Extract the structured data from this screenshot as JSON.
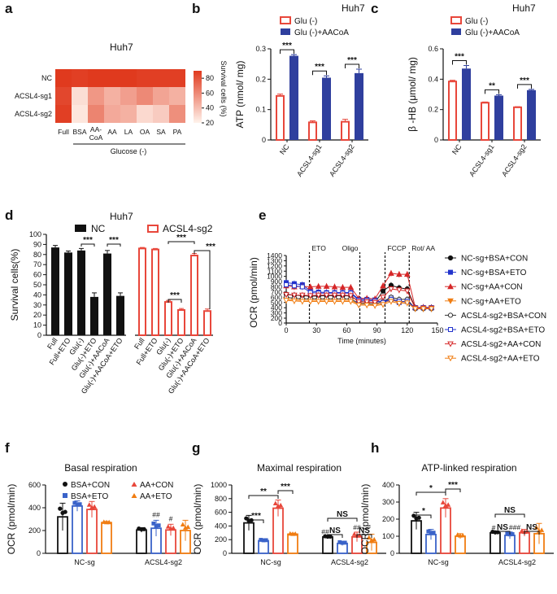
{
  "panels": {
    "a": "a",
    "b": "b",
    "c": "c",
    "d": "d",
    "e": "e",
    "f": "f",
    "g": "g",
    "h": "h"
  },
  "chart_data": [
    {
      "id": "a",
      "type": "heatmap",
      "title": "Huh7",
      "rows": [
        "NC",
        "ACSL4-sg1",
        "ACSL4-sg2"
      ],
      "columns": [
        "Full",
        "BSA",
        "AA-CoA",
        "AA",
        "LA",
        "OA",
        "SA",
        "PA"
      ],
      "column_group_label": "Glucose (-)",
      "values": [
        [
          90,
          88,
          90,
          90,
          90,
          88,
          88,
          88
        ],
        [
          85,
          28,
          55,
          45,
          52,
          60,
          50,
          45
        ],
        [
          88,
          25,
          62,
          48,
          45,
          30,
          35,
          58
        ]
      ],
      "colorbar": {
        "label": "Survival cells (%)",
        "ticks": [
          20,
          40,
          60,
          80
        ],
        "range": [
          20,
          90
        ],
        "low_color": "#fff3ec",
        "high_color": "#e03a1e"
      }
    },
    {
      "id": "b",
      "type": "bar",
      "title": "Huh7",
      "categories": [
        "NC",
        "ACSL4-sg1",
        "ACSL4-sg2"
      ],
      "series": [
        {
          "name": "Glu (-)",
          "values": [
            0.145,
            0.058,
            0.06
          ],
          "errors": [
            0.006,
            0.005,
            0.008
          ],
          "color": "#e8473b"
        },
        {
          "name": "Glu (-)+AACoA",
          "values": [
            0.277,
            0.205,
            0.22
          ],
          "errors": [
            0.004,
            0.006,
            0.013
          ],
          "color": "#2f3f9e"
        }
      ],
      "ylabel": "ATP (nmol/ mg)",
      "ylim": [
        0,
        0.3
      ],
      "yticks": [
        0,
        0.1,
        0.2,
        0.3
      ],
      "significance": [
        "***",
        "***",
        "***"
      ]
    },
    {
      "id": "c",
      "type": "bar",
      "title": "Huh7",
      "categories": [
        "NC",
        "ACSL4-sg1",
        "ACSL4-sg2"
      ],
      "series": [
        {
          "name": "Glu (-)",
          "values": [
            0.385,
            0.245,
            0.215
          ],
          "errors": [
            0.008,
            0.005,
            0.004
          ],
          "color": "#e8473b"
        },
        {
          "name": "Glu (-)+AACoA",
          "values": [
            0.47,
            0.292,
            0.328
          ],
          "errors": [
            0.02,
            0.006,
            0.005
          ],
          "color": "#2f3f9e"
        }
      ],
      "ylabel": "β -HB (μmol/ mg)",
      "ylim": [
        0,
        0.6
      ],
      "yticks": [
        0,
        0.2,
        0.4,
        0.6
      ],
      "significance": [
        "***",
        "**",
        "***"
      ]
    },
    {
      "id": "d",
      "type": "bar",
      "title": "Huh7",
      "categories": [
        "Full",
        "Full+ETO",
        "Glu(-)",
        "Glu(-)+ETO",
        "Glu(-)+AACoA",
        "Glu(-)+AACoA+ETO"
      ],
      "series": [
        {
          "name": "NC",
          "values": [
            87,
            82,
            84,
            38,
            81,
            39
          ],
          "errors": [
            2,
            1.5,
            2,
            4,
            3,
            3
          ],
          "color": "#111111"
        },
        {
          "name": "ACSL4-sg2",
          "values": [
            86,
            85,
            33,
            25,
            79,
            24
          ],
          "errors": [
            1,
            1,
            1.5,
            1.5,
            2,
            2
          ],
          "color": "#e8473b"
        }
      ],
      "ylabel": "Survival cells(%)",
      "ylim": [
        0,
        100
      ],
      "yticks": [
        0,
        10,
        20,
        30,
        40,
        50,
        60,
        70,
        80,
        90,
        100
      ],
      "significance": [
        "***",
        "***",
        "***",
        "***",
        "***"
      ]
    },
    {
      "id": "e",
      "type": "line",
      "x": [
        0,
        8,
        16,
        24,
        32,
        40,
        48,
        56,
        64,
        72,
        80,
        88,
        96,
        104,
        112,
        120,
        128,
        136,
        144
      ],
      "series": [
        {
          "name": "NC-sg+BSA+CON",
          "values": [
            660,
            640,
            630,
            620,
            625,
            630,
            630,
            630,
            625,
            520,
            510,
            500,
            720,
            830,
            780,
            760,
            400,
            400,
            400
          ],
          "color": "#111111",
          "marker": "circle-filled"
        },
        {
          "name": "NC-sg+BSA+ETO",
          "values": [
            880,
            860,
            840,
            720,
            700,
            690,
            690,
            690,
            690,
            560,
            560,
            550,
            500,
            590,
            500,
            520,
            400,
            400,
            400
          ],
          "color": "#2233cc",
          "marker": "square-filled"
        },
        {
          "name": "NC-sg+AA+CON",
          "values": [
            820,
            800,
            810,
            800,
            810,
            810,
            800,
            790,
            790,
            580,
            580,
            570,
            820,
            1060,
            1040,
            1040,
            400,
            410,
            400
          ],
          "color": "#d62728",
          "marker": "triangle-filled"
        },
        {
          "name": "NC-sg+AA+ETO",
          "values": [
            560,
            550,
            540,
            540,
            540,
            540,
            540,
            540,
            540,
            470,
            470,
            460,
            480,
            550,
            500,
            520,
            390,
            390,
            390
          ],
          "color": "#f07d12",
          "marker": "triangle-down-filled"
        },
        {
          "name": "ACSL4-sg2+BSA+CON",
          "values": [
            600,
            580,
            570,
            570,
            570,
            570,
            570,
            570,
            570,
            480,
            480,
            470,
            520,
            600,
            560,
            560,
            380,
            380,
            380
          ],
          "color": "#333333",
          "marker": "circle-open"
        },
        {
          "name": "ACSL4-sg2+BSA+ETO",
          "values": [
            840,
            820,
            800,
            690,
            680,
            680,
            680,
            680,
            680,
            540,
            540,
            530,
            500,
            560,
            520,
            520,
            400,
            400,
            400
          ],
          "color": "#2233cc",
          "marker": "square-open"
        },
        {
          "name": "ACSL4-sg2+AA+CON",
          "values": [
            650,
            640,
            640,
            630,
            640,
            640,
            640,
            640,
            630,
            510,
            510,
            500,
            600,
            760,
            740,
            720,
            390,
            390,
            390
          ],
          "color": "#d62728",
          "marker": "triangle-down-open"
        },
        {
          "name": "ACSL4-sg2+AA+ETO",
          "values": [
            540,
            530,
            520,
            520,
            520,
            520,
            520,
            520,
            520,
            450,
            450,
            440,
            460,
            520,
            480,
            490,
            380,
            380,
            380
          ],
          "color": "#f07d12",
          "marker": "triangle-down-open"
        }
      ],
      "injections": [
        {
          "label": "ETO",
          "x": 23
        },
        {
          "label": "Oligo",
          "x": 73
        },
        {
          "label": "FCCP",
          "x": 98
        },
        {
          "label": "Rot/ AA",
          "x": 122
        }
      ],
      "xlabel": "Time (minutes)",
      "ylabel": "OCR (pmol/min)",
      "xlim": [
        0,
        150
      ],
      "ylim": [
        0,
        1400
      ],
      "xticks": [
        0,
        30,
        60,
        90,
        120,
        150
      ],
      "yticks": [
        0,
        200,
        300,
        400,
        500,
        600,
        700,
        800,
        900,
        1000,
        1100,
        1200,
        1300,
        1400
      ]
    },
    {
      "id": "f",
      "type": "bar",
      "title": "Basal respiration",
      "categories": [
        "NC-sg",
        "ACSL4-sg2"
      ],
      "series": [
        {
          "name": "BSA+CON",
          "values": [
            320,
            205
          ],
          "errors": [
            120,
            20
          ],
          "color": "#111111"
        },
        {
          "name": "BSA+ETO",
          "values": [
            415,
            220
          ],
          "errors": [
            45,
            70
          ],
          "color": "#3a63c9"
        },
        {
          "name": "AA+CON",
          "values": [
            385,
            205
          ],
          "errors": [
            70,
            50
          ],
          "color": "#e8473b"
        },
        {
          "name": "AA+ETO",
          "values": [
            270,
            200
          ],
          "errors": [
            10,
            90
          ],
          "color": "#f07d12"
        }
      ],
      "ylabel": "OCR (pmol/min)",
      "ylim": [
        0,
        600
      ],
      "yticks": [
        0,
        200,
        400,
        600
      ],
      "annotations": [
        "##",
        "#"
      ]
    },
    {
      "id": "g",
      "type": "bar",
      "title": "Maximal respiration",
      "categories": [
        "NC-sg",
        "ACSL4-sg2"
      ],
      "series": [
        {
          "name": "BSA+CON",
          "values": [
            445,
            240
          ],
          "errors": [
            110,
            15
          ],
          "color": "#111111"
        },
        {
          "name": "BSA+ETO",
          "values": [
            185,
            145
          ],
          "errors": [
            20,
            30
          ],
          "color": "#3a63c9"
        },
        {
          "name": "AA+CON",
          "values": [
            660,
            240
          ],
          "errors": [
            120,
            70
          ],
          "color": "#e8473b"
        },
        {
          "name": "AA+ETO",
          "values": [
            280,
            160
          ],
          "errors": [
            15,
            120
          ],
          "color": "#f07d12"
        }
      ],
      "ylabel": "OCR (pmol/min)",
      "ylim": [
        0,
        1000
      ],
      "yticks": [
        0,
        200,
        400,
        600,
        800,
        1000
      ],
      "significance": [
        "**",
        "***",
        "***",
        "NS",
        "NS",
        "NS"
      ],
      "annotations": [
        "##",
        "##"
      ]
    },
    {
      "id": "h",
      "type": "bar",
      "title": "ATP-linked respiration",
      "categories": [
        "NC-sg",
        "ACSL4-sg2"
      ],
      "series": [
        {
          "name": "BSA+CON",
          "values": [
            190,
            120
          ],
          "errors": [
            50,
            10
          ],
          "color": "#111111"
        },
        {
          "name": "BSA+ETO",
          "values": [
            110,
            105
          ],
          "errors": [
            30,
            20
          ],
          "color": "#3a63c9"
        },
        {
          "name": "AA+CON",
          "values": [
            265,
            120
          ],
          "errors": [
            55,
            20
          ],
          "color": "#e8473b"
        },
        {
          "name": "AA+ETO",
          "values": [
            100,
            115
          ],
          "errors": [
            15,
            60
          ],
          "color": "#f07d12"
        }
      ],
      "ylabel": "OCR (pmol/min)",
      "ylim": [
        0,
        400
      ],
      "yticks": [
        0,
        100,
        200,
        300,
        400
      ],
      "significance": [
        "*",
        "*",
        "***",
        "NS",
        "NS",
        "NS"
      ],
      "annotations": [
        "#",
        "###"
      ]
    }
  ]
}
